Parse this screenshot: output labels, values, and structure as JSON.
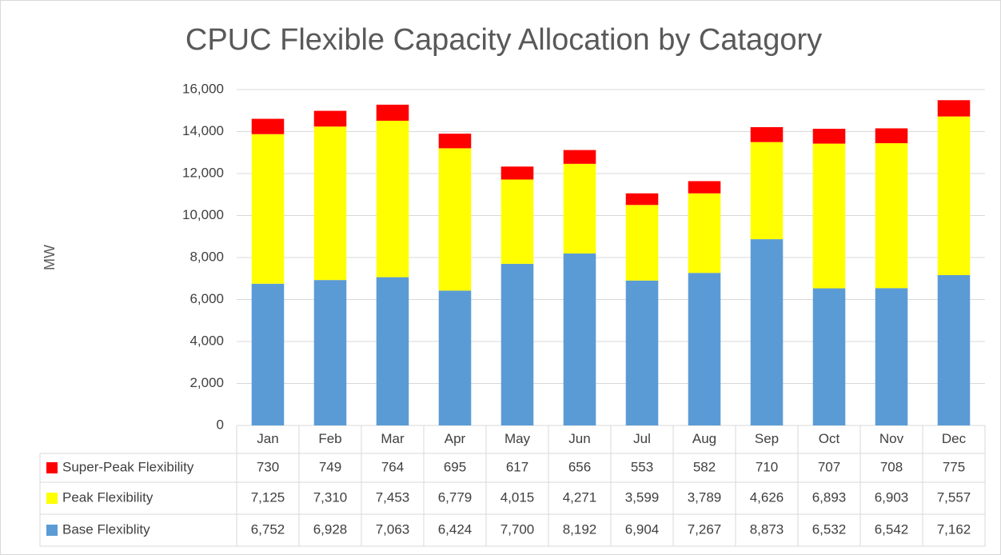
{
  "chart_data": {
    "type": "stacked-bar",
    "title": "CPUC Flexible Capacity Allocation by Catagory",
    "y_label": "MW",
    "categories": [
      "Jan",
      "Feb",
      "Mar",
      "Apr",
      "May",
      "Jun",
      "Jul",
      "Aug",
      "Sep",
      "Oct",
      "Nov",
      "Dec"
    ],
    "series": [
      {
        "name": "Base Flexiblity",
        "color": "#5b9bd5",
        "values": [
          6752,
          6928,
          7063,
          6424,
          7700,
          8192,
          6904,
          7267,
          8873,
          6532,
          6542,
          7162
        ],
        "value_labels": [
          "6,752",
          "6,928",
          "7,063",
          "6,424",
          "7,700",
          "8,192",
          "6,904",
          "7,267",
          "8,873",
          "6,532",
          "6,542",
          "7,162"
        ]
      },
      {
        "name": "Peak Flexibility",
        "color": "#ffff00",
        "values": [
          7125,
          7310,
          7453,
          6779,
          4015,
          4271,
          3599,
          3789,
          4626,
          6893,
          6903,
          7557
        ],
        "value_labels": [
          "7,125",
          "7,310",
          "7,453",
          "6,779",
          "4,015",
          "4,271",
          "3,599",
          "3,789",
          "4,626",
          "6,893",
          "6,903",
          "7,557"
        ]
      },
      {
        "name": "Super-Peak Flexibility",
        "color": "#ff0000",
        "values": [
          730,
          749,
          764,
          695,
          617,
          656,
          553,
          582,
          710,
          707,
          708,
          775
        ]
      }
    ],
    "ylim": [
      0,
      16000
    ],
    "yticks": [
      0,
      {
        "value": 2000,
        "label": "2,000"
      },
      {
        "value": 4000,
        "label": "4,000"
      },
      {
        "value": 6000,
        "label": "6,000"
      },
      {
        "value": 8000,
        "label": "8,000"
      },
      {
        "value": 10000,
        "label": "10,000"
      },
      {
        "value": 12000,
        "label": "12,000"
      },
      {
        "value": 14000,
        "label": "14,000"
      },
      {
        "value": 16000,
        "label": "16,000"
      }
    ],
    "grid": true
  }
}
